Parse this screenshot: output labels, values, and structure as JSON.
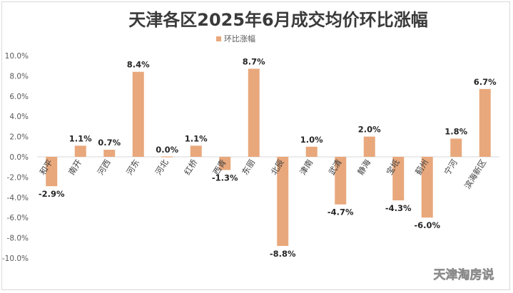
{
  "chart_data": {
    "type": "bar",
    "title": "天津各区2025年6月成交均价环比涨幅",
    "legend_position": "top-center",
    "grid": false,
    "series": [
      {
        "name": "环比涨幅",
        "color": "#e8a87c",
        "values": [
          -2.9,
          1.1,
          0.7,
          8.4,
          0.0,
          1.1,
          -1.3,
          8.7,
          -8.8,
          1.0,
          -4.7,
          2.0,
          -4.3,
          -6.0,
          1.8,
          6.7
        ],
        "labels": [
          "-2.9%",
          "1.1%",
          "0.7%",
          "8.4%",
          "0.0%",
          "1.1%",
          "-1.3%",
          "8.7%",
          "-8.8%",
          "1.0%",
          "-4.7%",
          "2.0%",
          "-4.3%",
          "-6.0%",
          "1.8%",
          "6.7%"
        ]
      }
    ],
    "categories": [
      "和平",
      "南开",
      "河西",
      "河东",
      "河北",
      "红桥",
      "西青",
      "东丽",
      "北辰",
      "津南",
      "武清",
      "静海",
      "宝坻",
      "蓟州",
      "宁河",
      "滨海新区"
    ],
    "yticks": [
      "10.0%",
      "8.0%",
      "6.0%",
      "4.0%",
      "2.0%",
      "0.0%",
      "-2.0%",
      "-4.0%",
      "-6.0%",
      "-8.0%",
      "-10.0%"
    ],
    "ylim": [
      -10,
      10
    ]
  },
  "watermark": "天津淘房说"
}
